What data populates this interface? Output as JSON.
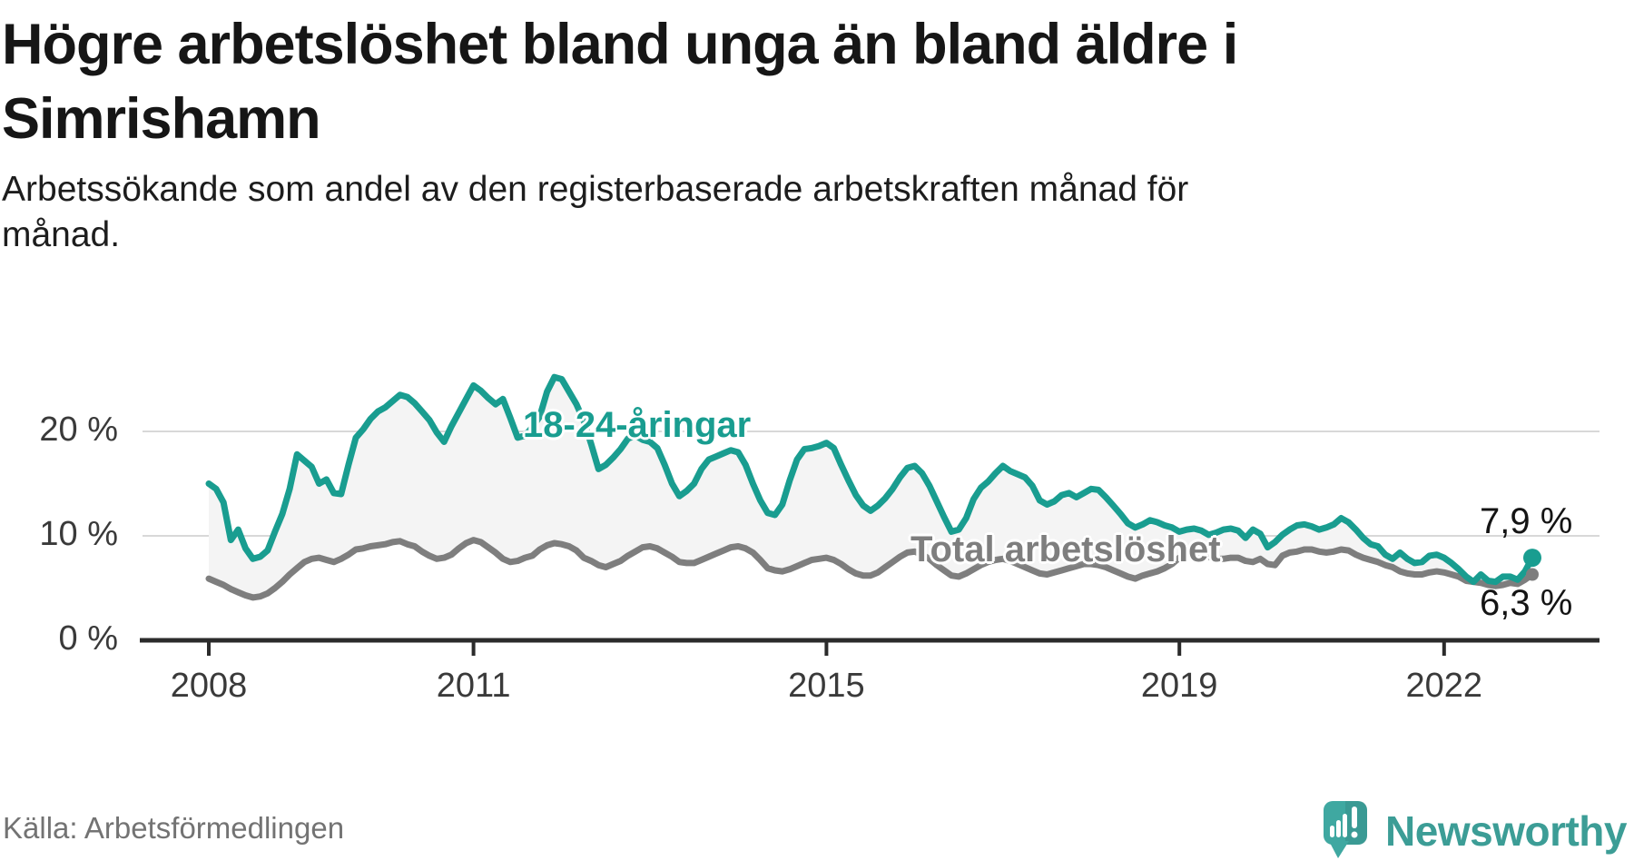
{
  "header": {
    "title_line1": "Högre arbetslöshet bland unga än bland äldre i",
    "title_line2": "Simrishamn",
    "subtitle_line1": "Arbetssökande som andel av den registerbaserade arbetskraften månad för",
    "subtitle_line2": "månad."
  },
  "labels": {
    "series_youth": "18-24-åringar",
    "series_total": "Total arbetslöshet",
    "end_value_youth": "7,9 %",
    "end_value_total": "6,3 %"
  },
  "footer": {
    "source": "Källa: Arbetsförmedlingen",
    "brand": "Newsworthy"
  },
  "colors": {
    "youth_line": "#199d90",
    "total_line": "#7e7e7e",
    "area_fill": "#f4f4f4",
    "gridline": "#d8d8d8",
    "axis": "#2b2b2b",
    "tick_text": "#3a3a3a",
    "value_text": "#141414",
    "logo_teal": "#3fa8a1",
    "wordmark_teal": "#3c9d96"
  },
  "chart_data": {
    "type": "line",
    "title": "Högre arbetslöshet bland unga än bland äldre i Simrishamn",
    "subtitle": "Arbetssökande som andel av den registerbaserade arbetskraften månad för månad.",
    "x_start": "2008-01",
    "x_end": "2023-01",
    "frequency": "monthly",
    "grid": "horizontal",
    "legend_position": "inline-labels",
    "ylim": [
      0,
      27
    ],
    "y_ticks": [
      {
        "label": "0 %",
        "value": 0
      },
      {
        "label": "10 %",
        "value": 10
      },
      {
        "label": "20 %",
        "value": 20
      }
    ],
    "x_ticks": [
      {
        "label": "2008",
        "month_index": 0
      },
      {
        "label": "2011",
        "month_index": 36
      },
      {
        "label": "2015",
        "month_index": 84
      },
      {
        "label": "2019",
        "month_index": 132
      },
      {
        "label": "2022",
        "month_index": 168
      }
    ],
    "series": [
      {
        "name": "18-24-åringar",
        "color": "#199d90",
        "end_label": "7,9 %",
        "end_value": 7.9,
        "values": [
          15.0,
          14.5,
          13.2,
          9.6,
          10.6,
          8.8,
          7.8,
          8.0,
          8.6,
          10.4,
          12.1,
          14.5,
          17.8,
          17.2,
          16.6,
          15.0,
          15.4,
          14.1,
          14.0,
          16.8,
          19.4,
          20.2,
          21.2,
          21.9,
          22.3,
          22.9,
          23.5,
          23.3,
          22.7,
          21.9,
          21.1,
          19.9,
          19.0,
          20.5,
          21.8,
          23.1,
          24.4,
          23.9,
          23.2,
          22.6,
          23.1,
          21.3,
          19.4,
          19.6,
          20.4,
          21.4,
          23.8,
          25.2,
          25.0,
          23.8,
          22.6,
          21.0,
          18.8,
          16.4,
          16.8,
          17.5,
          18.3,
          19.3,
          19.6,
          19.2,
          19.0,
          18.4,
          16.8,
          15.0,
          13.8,
          14.3,
          15.0,
          16.4,
          17.3,
          17.6,
          17.9,
          18.2,
          18.0,
          16.8,
          15.0,
          13.4,
          12.2,
          12.0,
          13.0,
          15.3,
          17.3,
          18.3,
          18.4,
          18.6,
          18.9,
          18.4,
          16.8,
          15.3,
          13.9,
          12.9,
          12.4,
          12.9,
          13.6,
          14.5,
          15.6,
          16.5,
          16.7,
          16.0,
          14.8,
          13.3,
          11.8,
          10.4,
          10.6,
          11.7,
          13.5,
          14.6,
          15.2,
          16.0,
          16.7,
          16.2,
          15.9,
          15.6,
          14.8,
          13.4,
          13.0,
          13.3,
          13.9,
          14.1,
          13.7,
          14.1,
          14.5,
          14.4,
          13.7,
          12.9,
          12.1,
          11.2,
          10.8,
          11.1,
          11.5,
          11.3,
          11.0,
          10.8,
          10.4,
          10.6,
          10.7,
          10.5,
          10.1,
          10.3,
          10.6,
          10.7,
          10.5,
          9.8,
          10.6,
          10.2,
          8.9,
          9.4,
          10.1,
          10.6,
          11.0,
          11.1,
          10.9,
          10.6,
          10.8,
          11.1,
          11.7,
          11.3,
          10.6,
          9.8,
          9.2,
          9.0,
          8.2,
          7.8,
          8.4,
          7.8,
          7.4,
          7.5,
          8.1,
          8.2,
          7.9,
          7.4,
          6.8,
          6.1,
          5.6,
          6.3,
          5.7,
          5.6,
          6.1,
          6.1,
          5.8,
          6.6,
          7.9
        ]
      },
      {
        "name": "Total arbetslöshet",
        "color": "#7e7e7e",
        "end_label": "6,3 %",
        "end_value": 6.3,
        "values": [
          5.9,
          5.6,
          5.3,
          4.9,
          4.6,
          4.3,
          4.1,
          4.2,
          4.5,
          5.0,
          5.6,
          6.3,
          6.9,
          7.5,
          7.8,
          7.9,
          7.7,
          7.5,
          7.8,
          8.2,
          8.7,
          8.8,
          9.0,
          9.1,
          9.2,
          9.4,
          9.5,
          9.2,
          9.0,
          8.5,
          8.1,
          7.8,
          7.9,
          8.2,
          8.8,
          9.3,
          9.6,
          9.4,
          8.9,
          8.4,
          7.8,
          7.5,
          7.6,
          7.9,
          8.1,
          8.7,
          9.1,
          9.3,
          9.2,
          9.0,
          8.6,
          7.9,
          7.6,
          7.2,
          7.0,
          7.3,
          7.6,
          8.1,
          8.5,
          8.9,
          9.0,
          8.8,
          8.4,
          8.0,
          7.5,
          7.4,
          7.4,
          7.7,
          8.0,
          8.3,
          8.6,
          8.9,
          9.0,
          8.8,
          8.4,
          7.7,
          6.9,
          6.7,
          6.6,
          6.8,
          7.1,
          7.4,
          7.7,
          7.8,
          7.9,
          7.7,
          7.3,
          6.8,
          6.4,
          6.2,
          6.2,
          6.5,
          7.0,
          7.5,
          8.0,
          8.4,
          8.5,
          8.2,
          7.8,
          7.2,
          6.7,
          6.2,
          6.1,
          6.4,
          6.8,
          7.2,
          7.5,
          7.7,
          7.8,
          7.6,
          7.3,
          7.0,
          6.7,
          6.4,
          6.3,
          6.5,
          6.7,
          6.9,
          7.1,
          7.3,
          7.3,
          7.2,
          7.0,
          6.7,
          6.4,
          6.1,
          5.9,
          6.2,
          6.4,
          6.6,
          6.9,
          7.3,
          7.9,
          8.2,
          8.4,
          8.3,
          8.0,
          7.8,
          7.8,
          7.9,
          7.9,
          7.6,
          7.5,
          7.8,
          7.3,
          7.2,
          8.1,
          8.4,
          8.5,
          8.7,
          8.7,
          8.5,
          8.4,
          8.5,
          8.7,
          8.6,
          8.2,
          7.9,
          7.7,
          7.5,
          7.2,
          7.0,
          6.6,
          6.4,
          6.3,
          6.3,
          6.5,
          6.6,
          6.5,
          6.3,
          6.1,
          5.7,
          5.6,
          5.5,
          5.3,
          5.2,
          5.3,
          5.5,
          5.4,
          5.8,
          6.3
        ]
      }
    ]
  }
}
